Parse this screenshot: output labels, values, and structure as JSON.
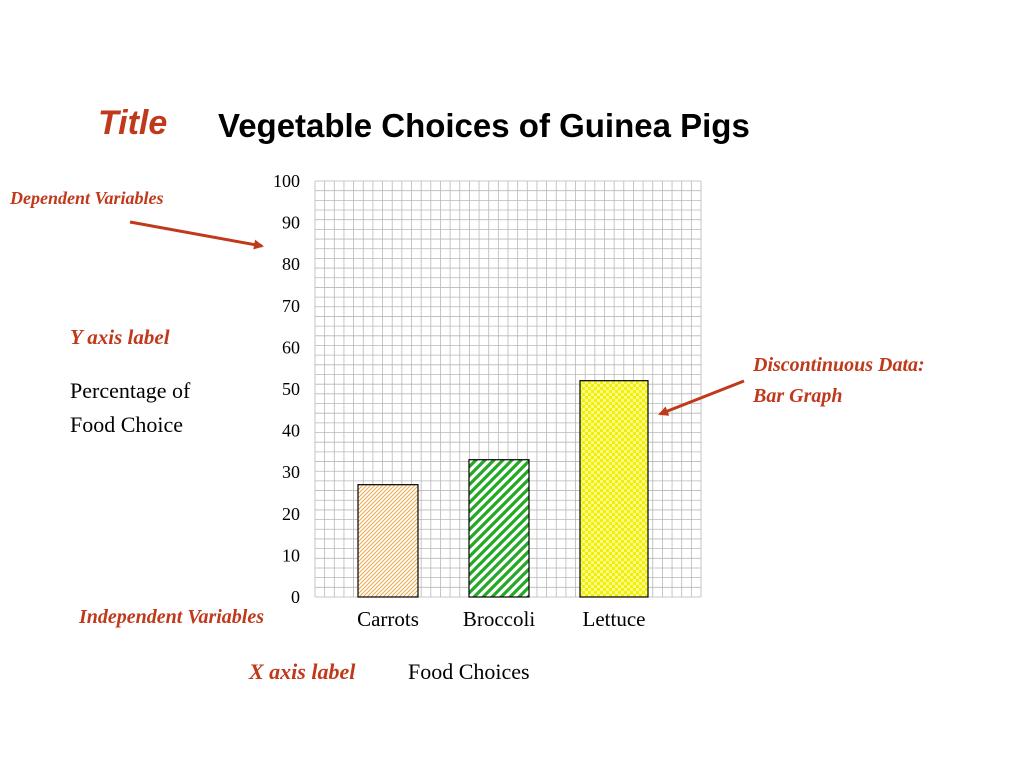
{
  "annotations": {
    "title_word": "Title",
    "dependent": "Dependent Variables",
    "y_axis_label_word": "Y axis label",
    "y_axis_text_line1": "Percentage of",
    "y_axis_text_line2": "Food Choice",
    "discontinuous_line1": "Discontinuous Data:",
    "discontinuous_line2": "Bar Graph",
    "independent": "Independent Variables",
    "x_axis_label_word": "X axis label",
    "x_axis_text": "Food Choices"
  },
  "colors": {
    "annotation": "#c0391b",
    "carrots": "#e9a94a",
    "broccoli": "#22a822",
    "lettuce": "#f0f000",
    "grid": "#b8b8b8"
  },
  "chart_data": {
    "type": "bar",
    "title": "Vegetable Choices of Guinea Pigs",
    "categories": [
      "Carrots",
      "Broccoli",
      "Lettuce"
    ],
    "values": [
      27,
      33,
      52
    ],
    "xlabel": "Food Choices",
    "ylabel": "Percentage of Food Choice",
    "ylim": [
      0,
      100
    ],
    "yticks": [
      0,
      10,
      20,
      30,
      40,
      50,
      60,
      70,
      80,
      90,
      100
    ],
    "grid": true
  }
}
